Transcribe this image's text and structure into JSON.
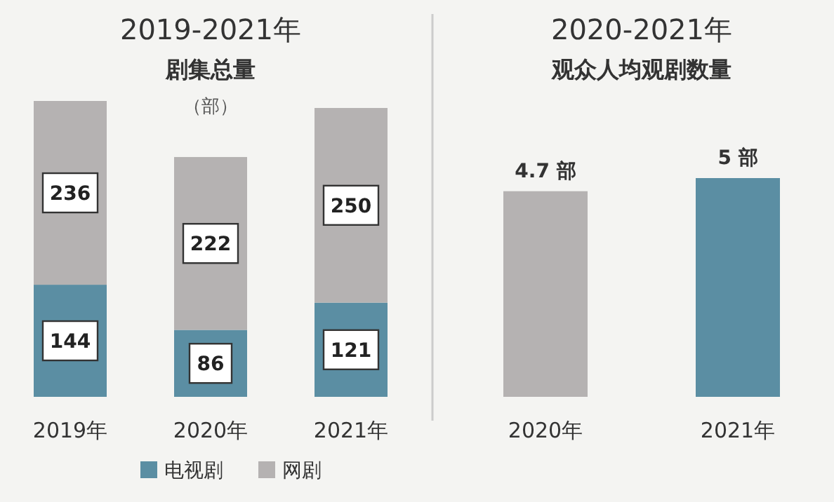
{
  "chart_data": [
    {
      "type": "bar",
      "title": "2019-2021年",
      "subtitle": "剧集总量",
      "annotations": [
        "（部）"
      ],
      "categories": [
        "2019年",
        "2020年",
        "2021年"
      ],
      "stacked": true,
      "data_labels": true,
      "legend": "bottom",
      "series": [
        {
          "name": "电视剧",
          "color": "#5b8ea3",
          "values": [
            144,
            86,
            121
          ]
        },
        {
          "name": "网剧",
          "color": "#b5b2b2",
          "values": [
            236,
            222,
            250
          ]
        }
      ]
    },
    {
      "type": "bar",
      "title": "2020-2021年",
      "subtitle": "观众人均观剧数量",
      "categories": [
        "2020年",
        "2021年"
      ],
      "values": [
        4.7,
        5
      ],
      "colors": [
        "#b5b2b2",
        "#5b8ea3"
      ],
      "value_labels": [
        "4.7 部",
        "5 部"
      ]
    }
  ]
}
